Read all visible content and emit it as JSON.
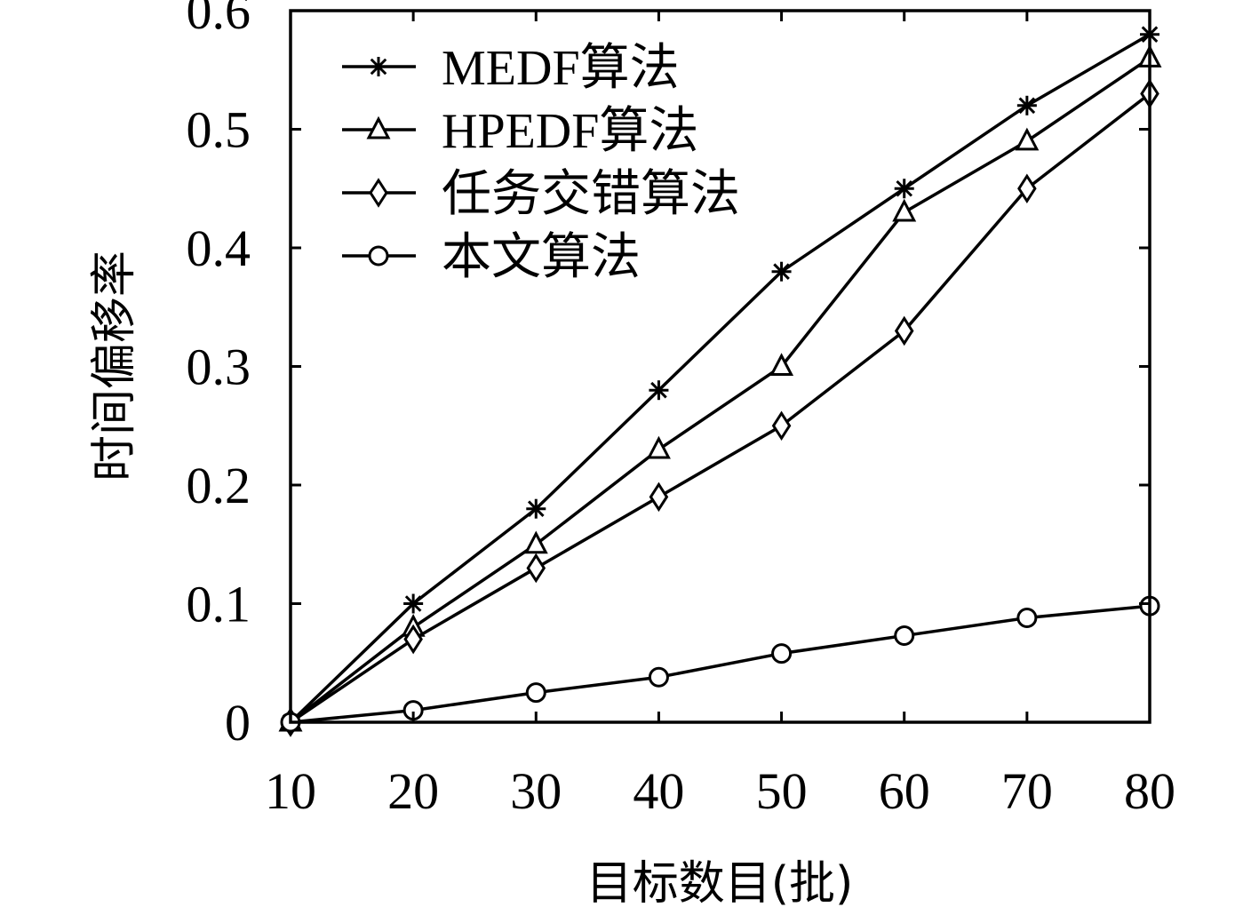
{
  "chart_data": {
    "type": "line",
    "xlabel": "目标数目(批)",
    "ylabel": "时间偏移率",
    "x": [
      10,
      20,
      30,
      40,
      50,
      60,
      70,
      80
    ],
    "xlim": [
      10,
      80
    ],
    "ylim": [
      0,
      0.6
    ],
    "xticks": [
      "10",
      "20",
      "30",
      "40",
      "50",
      "60",
      "70",
      "80"
    ],
    "yticks": [
      "0",
      "0.1",
      "0.2",
      "0.3",
      "0.4",
      "0.5",
      "0.6"
    ],
    "legend_position": "top-left",
    "grid": false,
    "series": [
      {
        "name": "MEDF算法",
        "marker": "star",
        "values": [
          0,
          0.1,
          0.18,
          0.28,
          0.38,
          0.45,
          0.52,
          0.58
        ]
      },
      {
        "name": "HPEDF算法",
        "marker": "triangle",
        "values": [
          0,
          0.08,
          0.15,
          0.23,
          0.3,
          0.43,
          0.49,
          0.56
        ]
      },
      {
        "name": "任务交错算法",
        "marker": "diamond",
        "values": [
          0,
          0.07,
          0.13,
          0.19,
          0.25,
          0.33,
          0.45,
          0.53
        ]
      },
      {
        "name": "本文算法",
        "marker": "circle",
        "values": [
          0,
          0.01,
          0.025,
          0.038,
          0.058,
          0.073,
          0.088,
          0.098
        ]
      }
    ]
  }
}
